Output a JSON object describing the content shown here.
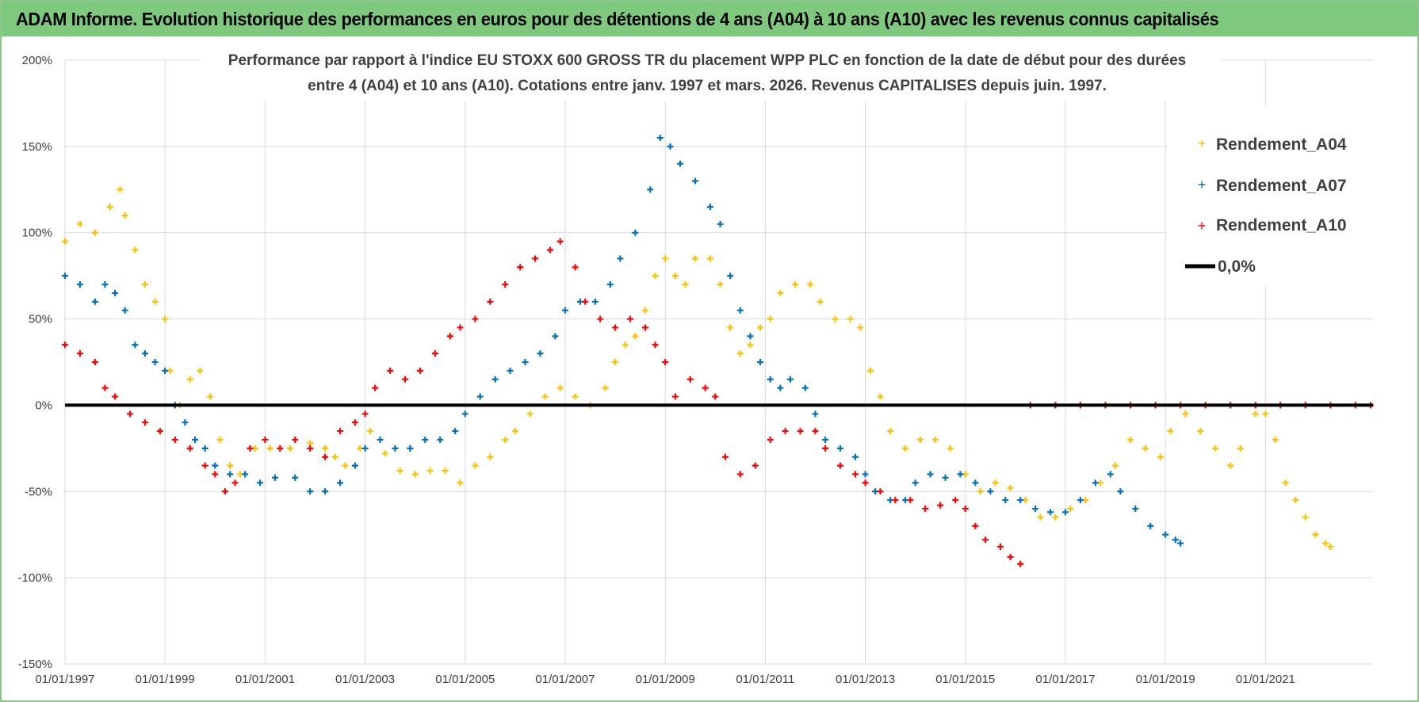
{
  "banner": {
    "title": "ADAM Informe. Evolution historique des performances en euros pour des détentions de 4 ans (A04) à 10 ans (A10) avec les revenus connus capitalisés",
    "background_color": "#7ec97e"
  },
  "chart_data": {
    "type": "scatter",
    "title_line1": "Performance par rapport à l'indice EU STOXX 600 GROSS TR  du placement WPP PLC en fonction de la date de début pour des durées",
    "title_line2": "entre 4 (A04) et 10 ans (A10). Cotations entre janv. 1997 et mars. 2026. Revenus CAPITALISES depuis juin. 1997.",
    "xlabel": "",
    "ylabel": "",
    "xlim": [
      1997.0,
      2023.15
    ],
    "ylim": [
      -150,
      200
    ],
    "grid": true,
    "legend_position": "top-right",
    "x_tick_labels": [
      {
        "x": 1997,
        "label": "01/01/1997"
      },
      {
        "x": 1999,
        "label": "01/01/1999"
      },
      {
        "x": 2001,
        "label": "01/01/2001"
      },
      {
        "x": 2003,
        "label": "01/01/2003"
      },
      {
        "x": 2005,
        "label": "01/01/2005"
      },
      {
        "x": 2007,
        "label": "01/01/2007"
      },
      {
        "x": 2009,
        "label": "01/01/2009"
      },
      {
        "x": 2011,
        "label": "01/01/2011"
      },
      {
        "x": 2013,
        "label": "01/01/2013"
      },
      {
        "x": 2015,
        "label": "01/01/2015"
      },
      {
        "x": 2017,
        "label": "01/01/2017"
      },
      {
        "x": 2019,
        "label": "01/01/2019"
      },
      {
        "x": 2021,
        "label": "01/01/2021"
      }
    ],
    "y_tick_labels": [
      {
        "y": 200,
        "label": "200%"
      },
      {
        "y": 150,
        "label": "150%"
      },
      {
        "y": 100,
        "label": "100%"
      },
      {
        "y": 50,
        "label": "50%"
      },
      {
        "y": 0,
        "label": "0%"
      },
      {
        "y": -50,
        "label": "-50%"
      },
      {
        "y": -100,
        "label": "-100%"
      },
      {
        "y": -150,
        "label": "-150%"
      }
    ],
    "series": [
      {
        "name": "Rendement_A04",
        "color": "#ffc000",
        "marker": "plus",
        "points": [
          [
            1997.0,
            95
          ],
          [
            1997.3,
            105
          ],
          [
            1997.6,
            100
          ],
          [
            1997.9,
            115
          ],
          [
            1998.1,
            125
          ],
          [
            1998.2,
            110
          ],
          [
            1998.4,
            90
          ],
          [
            1998.6,
            70
          ],
          [
            1998.8,
            60
          ],
          [
            1999.0,
            50
          ],
          [
            1999.1,
            20
          ],
          [
            1999.3,
            0
          ],
          [
            1999.5,
            15
          ],
          [
            1999.7,
            20
          ],
          [
            1999.9,
            5
          ],
          [
            2000.1,
            -20
          ],
          [
            2000.3,
            -35
          ],
          [
            2000.5,
            -40
          ],
          [
            2000.8,
            -25
          ],
          [
            2001.1,
            -25
          ],
          [
            2001.5,
            -25
          ],
          [
            2001.9,
            -22
          ],
          [
            2002.2,
            -25
          ],
          [
            2002.4,
            -30
          ],
          [
            2002.6,
            -35
          ],
          [
            2002.9,
            -25
          ],
          [
            2003.1,
            -15
          ],
          [
            2003.4,
            -28
          ],
          [
            2003.7,
            -38
          ],
          [
            2004.0,
            -40
          ],
          [
            2004.3,
            -38
          ],
          [
            2004.6,
            -38
          ],
          [
            2004.9,
            -45
          ],
          [
            2005.2,
            -35
          ],
          [
            2005.5,
            -30
          ],
          [
            2005.8,
            -20
          ],
          [
            2006.0,
            -15
          ],
          [
            2006.3,
            -5
          ],
          [
            2006.6,
            5
          ],
          [
            2006.9,
            10
          ],
          [
            2007.2,
            5
          ],
          [
            2007.5,
            0
          ],
          [
            2007.8,
            10
          ],
          [
            2008.0,
            25
          ],
          [
            2008.2,
            35
          ],
          [
            2008.4,
            40
          ],
          [
            2008.6,
            55
          ],
          [
            2008.8,
            75
          ],
          [
            2009.0,
            85
          ],
          [
            2009.2,
            75
          ],
          [
            2009.4,
            70
          ],
          [
            2009.6,
            85
          ],
          [
            2009.9,
            85
          ],
          [
            2010.1,
            70
          ],
          [
            2010.3,
            45
          ],
          [
            2010.5,
            30
          ],
          [
            2010.7,
            35
          ],
          [
            2010.9,
            45
          ],
          [
            2011.1,
            50
          ],
          [
            2011.3,
            65
          ],
          [
            2011.6,
            70
          ],
          [
            2011.9,
            70
          ],
          [
            2012.1,
            60
          ],
          [
            2012.4,
            50
          ],
          [
            2012.7,
            50
          ],
          [
            2012.9,
            45
          ],
          [
            2013.1,
            20
          ],
          [
            2013.3,
            5
          ],
          [
            2013.5,
            -15
          ],
          [
            2013.8,
            -25
          ],
          [
            2014.1,
            -20
          ],
          [
            2014.4,
            -20
          ],
          [
            2014.7,
            -25
          ],
          [
            2015.0,
            -40
          ],
          [
            2015.3,
            -50
          ],
          [
            2015.6,
            -45
          ],
          [
            2015.9,
            -48
          ],
          [
            2016.2,
            -55
          ],
          [
            2016.5,
            -65
          ],
          [
            2016.8,
            -65
          ],
          [
            2017.1,
            -60
          ],
          [
            2017.4,
            -55
          ],
          [
            2017.7,
            -45
          ],
          [
            2018.0,
            -35
          ],
          [
            2018.3,
            -20
          ],
          [
            2018.6,
            -25
          ],
          [
            2018.9,
            -30
          ],
          [
            2019.1,
            -15
          ],
          [
            2019.4,
            -5
          ],
          [
            2019.7,
            -15
          ],
          [
            2020.0,
            -25
          ],
          [
            2020.3,
            -35
          ],
          [
            2020.5,
            -25
          ],
          [
            2020.8,
            -5
          ],
          [
            2021.0,
            -5
          ],
          [
            2021.2,
            -20
          ],
          [
            2021.4,
            -45
          ],
          [
            2021.6,
            -55
          ],
          [
            2021.8,
            -65
          ],
          [
            2022.0,
            -75
          ],
          [
            2022.2,
            -80
          ],
          [
            2022.3,
            -82
          ]
        ]
      },
      {
        "name": "Rendement_A07",
        "color": "#0070c0",
        "marker": "plus",
        "points": [
          [
            1997.0,
            75
          ],
          [
            1997.3,
            70
          ],
          [
            1997.6,
            60
          ],
          [
            1997.8,
            70
          ],
          [
            1998.0,
            65
          ],
          [
            1998.2,
            55
          ],
          [
            1998.4,
            35
          ],
          [
            1998.6,
            30
          ],
          [
            1998.8,
            25
          ],
          [
            1999.0,
            20
          ],
          [
            1999.2,
            0
          ],
          [
            1999.4,
            -10
          ],
          [
            1999.6,
            -20
          ],
          [
            1999.8,
            -25
          ],
          [
            2000.0,
            -35
          ],
          [
            2000.3,
            -40
          ],
          [
            2000.6,
            -40
          ],
          [
            2000.9,
            -45
          ],
          [
            2001.2,
            -42
          ],
          [
            2001.6,
            -42
          ],
          [
            2001.9,
            -50
          ],
          [
            2002.2,
            -50
          ],
          [
            2002.5,
            -45
          ],
          [
            2002.8,
            -35
          ],
          [
            2003.0,
            -25
          ],
          [
            2003.3,
            -20
          ],
          [
            2003.6,
            -25
          ],
          [
            2003.9,
            -25
          ],
          [
            2004.2,
            -20
          ],
          [
            2004.5,
            -20
          ],
          [
            2004.8,
            -15
          ],
          [
            2005.0,
            -5
          ],
          [
            2005.3,
            5
          ],
          [
            2005.6,
            15
          ],
          [
            2005.9,
            20
          ],
          [
            2006.2,
            25
          ],
          [
            2006.5,
            30
          ],
          [
            2006.8,
            40
          ],
          [
            2007.0,
            55
          ],
          [
            2007.3,
            60
          ],
          [
            2007.6,
            60
          ],
          [
            2007.9,
            70
          ],
          [
            2008.1,
            85
          ],
          [
            2008.4,
            100
          ],
          [
            2008.7,
            125
          ],
          [
            2008.9,
            155
          ],
          [
            2009.1,
            150
          ],
          [
            2009.3,
            140
          ],
          [
            2009.6,
            130
          ],
          [
            2009.9,
            115
          ],
          [
            2010.1,
            105
          ],
          [
            2010.3,
            75
          ],
          [
            2010.5,
            55
          ],
          [
            2010.7,
            40
          ],
          [
            2010.9,
            25
          ],
          [
            2011.1,
            15
          ],
          [
            2011.3,
            10
          ],
          [
            2011.5,
            15
          ],
          [
            2011.8,
            10
          ],
          [
            2012.0,
            -5
          ],
          [
            2012.2,
            -20
          ],
          [
            2012.5,
            -25
          ],
          [
            2012.8,
            -30
          ],
          [
            2013.0,
            -40
          ],
          [
            2013.2,
            -50
          ],
          [
            2013.5,
            -55
          ],
          [
            2013.8,
            -55
          ],
          [
            2014.0,
            -45
          ],
          [
            2014.3,
            -40
          ],
          [
            2014.6,
            -42
          ],
          [
            2014.9,
            -40
          ],
          [
            2015.2,
            -45
          ],
          [
            2015.5,
            -50
          ],
          [
            2015.8,
            -55
          ],
          [
            2016.1,
            -55
          ],
          [
            2016.4,
            -60
          ],
          [
            2016.7,
            -62
          ],
          [
            2017.0,
            -62
          ],
          [
            2017.3,
            -55
          ],
          [
            2017.6,
            -45
          ],
          [
            2017.9,
            -40
          ],
          [
            2018.1,
            -50
          ],
          [
            2018.4,
            -60
          ],
          [
            2018.7,
            -70
          ],
          [
            2019.0,
            -75
          ],
          [
            2019.2,
            -78
          ],
          [
            2019.3,
            -80
          ]
        ]
      },
      {
        "name": "Rendement_A10",
        "color": "#ff0000",
        "marker": "plus",
        "points": [
          [
            1997.0,
            35
          ],
          [
            1997.3,
            30
          ],
          [
            1997.6,
            25
          ],
          [
            1997.8,
            10
          ],
          [
            1998.0,
            5
          ],
          [
            1998.3,
            -5
          ],
          [
            1998.6,
            -10
          ],
          [
            1998.9,
            -15
          ],
          [
            1999.2,
            -20
          ],
          [
            1999.5,
            -25
          ],
          [
            1999.8,
            -35
          ],
          [
            2000.0,
            -40
          ],
          [
            2000.2,
            -50
          ],
          [
            2000.4,
            -45
          ],
          [
            2000.7,
            -25
          ],
          [
            2001.0,
            -20
          ],
          [
            2001.3,
            -25
          ],
          [
            2001.6,
            -20
          ],
          [
            2001.9,
            -25
          ],
          [
            2002.2,
            -30
          ],
          [
            2002.5,
            -15
          ],
          [
            2002.8,
            -10
          ],
          [
            2003.0,
            -5
          ],
          [
            2003.2,
            10
          ],
          [
            2003.5,
            20
          ],
          [
            2003.8,
            15
          ],
          [
            2004.1,
            20
          ],
          [
            2004.4,
            30
          ],
          [
            2004.7,
            40
          ],
          [
            2004.9,
            45
          ],
          [
            2005.2,
            50
          ],
          [
            2005.5,
            60
          ],
          [
            2005.8,
            70
          ],
          [
            2006.1,
            80
          ],
          [
            2006.4,
            85
          ],
          [
            2006.7,
            90
          ],
          [
            2006.9,
            95
          ],
          [
            2007.2,
            80
          ],
          [
            2007.4,
            60
          ],
          [
            2007.7,
            50
          ],
          [
            2008.0,
            45
          ],
          [
            2008.3,
            50
          ],
          [
            2008.6,
            45
          ],
          [
            2008.8,
            35
          ],
          [
            2009.0,
            25
          ],
          [
            2009.2,
            5
          ],
          [
            2009.5,
            15
          ],
          [
            2009.8,
            10
          ],
          [
            2010.0,
            5
          ],
          [
            2010.2,
            -30
          ],
          [
            2010.5,
            -40
          ],
          [
            2010.8,
            -35
          ],
          [
            2011.1,
            -20
          ],
          [
            2011.4,
            -15
          ],
          [
            2011.7,
            -15
          ],
          [
            2012.0,
            -15
          ],
          [
            2012.2,
            -25
          ],
          [
            2012.5,
            -35
          ],
          [
            2012.8,
            -40
          ],
          [
            2013.0,
            -45
          ],
          [
            2013.3,
            -50
          ],
          [
            2013.6,
            -55
          ],
          [
            2013.9,
            -55
          ],
          [
            2014.2,
            -60
          ],
          [
            2014.5,
            -58
          ],
          [
            2014.8,
            -55
          ],
          [
            2015.0,
            -60
          ],
          [
            2015.2,
            -70
          ],
          [
            2015.4,
            -78
          ],
          [
            2015.7,
            -82
          ],
          [
            2015.9,
            -88
          ],
          [
            2016.1,
            -92
          ],
          [
            2016.3,
            0
          ],
          [
            2016.8,
            0
          ],
          [
            2017.3,
            0
          ],
          [
            2017.8,
            0
          ],
          [
            2018.3,
            0
          ],
          [
            2018.8,
            0
          ],
          [
            2019.3,
            0
          ],
          [
            2019.8,
            0
          ],
          [
            2020.3,
            0
          ],
          [
            2020.8,
            0
          ],
          [
            2021.3,
            0
          ],
          [
            2021.8,
            0
          ],
          [
            2022.3,
            0
          ],
          [
            2022.8,
            0
          ],
          [
            2023.1,
            0
          ]
        ]
      },
      {
        "name": "0,0%",
        "color": "#000000",
        "marker": "line",
        "points": [
          [
            1997.0,
            0
          ],
          [
            2023.15,
            0
          ]
        ]
      }
    ]
  }
}
